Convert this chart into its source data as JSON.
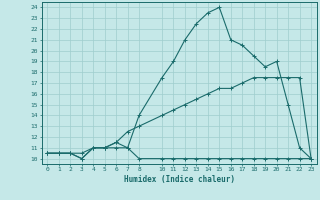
{
  "xlabel": "Humidex (Indice chaleur)",
  "bg_color": "#c5e8e8",
  "grid_color": "#9fcece",
  "line_color": "#1a6b6b",
  "xlim": [
    -0.5,
    23.5
  ],
  "ylim": [
    9.5,
    24.5
  ],
  "xticks": [
    0,
    1,
    2,
    3,
    4,
    5,
    6,
    7,
    8,
    10,
    11,
    12,
    13,
    14,
    15,
    16,
    17,
    18,
    19,
    20,
    21,
    22,
    23
  ],
  "yticks": [
    10,
    11,
    12,
    13,
    14,
    15,
    16,
    17,
    18,
    19,
    20,
    21,
    22,
    23,
    24
  ],
  "line1_x": [
    0,
    1,
    2,
    3,
    4,
    5,
    6,
    7,
    8,
    10,
    11,
    12,
    13,
    14,
    15,
    16,
    17,
    18,
    19,
    20,
    21,
    22,
    23
  ],
  "line1_y": [
    10.5,
    10.5,
    10.5,
    10.0,
    11.0,
    11.0,
    11.0,
    11.0,
    10.0,
    10.0,
    10.0,
    10.0,
    10.0,
    10.0,
    10.0,
    10.0,
    10.0,
    10.0,
    10.0,
    10.0,
    10.0,
    10.0,
    10.0
  ],
  "line2_x": [
    0,
    1,
    2,
    3,
    4,
    5,
    6,
    7,
    8,
    10,
    11,
    12,
    13,
    14,
    15,
    16,
    17,
    18,
    19,
    20,
    21,
    22,
    23
  ],
  "line2_y": [
    10.5,
    10.5,
    10.5,
    10.5,
    11.0,
    11.0,
    11.5,
    12.5,
    13.0,
    14.0,
    14.5,
    15.0,
    15.5,
    16.0,
    16.5,
    16.5,
    17.0,
    17.5,
    17.5,
    17.5,
    17.5,
    17.5,
    10.0
  ],
  "line3_x": [
    0,
    1,
    2,
    3,
    4,
    5,
    6,
    7,
    8,
    10,
    11,
    12,
    13,
    14,
    15,
    16,
    17,
    18,
    19,
    20,
    21,
    22,
    23
  ],
  "line3_y": [
    10.5,
    10.5,
    10.5,
    10.0,
    11.0,
    11.0,
    11.5,
    11.0,
    14.0,
    17.5,
    19.0,
    21.0,
    22.5,
    23.5,
    24.0,
    21.0,
    20.5,
    19.5,
    18.5,
    19.0,
    15.0,
    11.0,
    10.0
  ]
}
